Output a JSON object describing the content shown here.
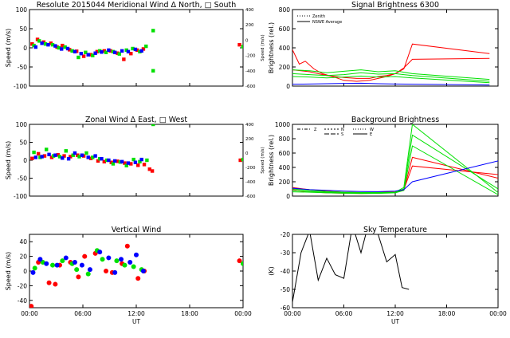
{
  "figure": {
    "x_tick_labels": [
      "00:00",
      "06:00",
      "12:00",
      "18:00",
      "00:00"
    ],
    "x_axis_label": "UT",
    "colors": {
      "red": "#ff0000",
      "green": "#00e000",
      "blue": "#0000ff",
      "axis": "#000000",
      "background": "#ffffff"
    }
  },
  "chart_data": [
    {
      "type": "scatter",
      "title": "Resolute   2015044     Meridional Wind   Δ North, □ South",
      "ylabel": "Speed (m/s)",
      "ylabel_right": "Speed (m/s)",
      "xlim": [
        0,
        24
      ],
      "ylim": [
        -100,
        100
      ],
      "yticks": [
        -100,
        -50,
        0,
        50,
        100
      ],
      "y2ticks": [
        -600,
        -400,
        -200,
        0,
        200,
        400
      ],
      "series": [
        {
          "color": "red",
          "x": [
            0.3,
            0.9,
            1.6,
            2.4,
            3.1,
            3.7,
            4.5,
            5.3,
            6.1,
            6.9,
            7.6,
            8.4,
            9.1,
            9.9,
            10.6,
            11.4,
            12.1,
            12.8,
            23.6
          ],
          "y": [
            10,
            22,
            15,
            12,
            2,
            6,
            -5,
            -9,
            -22,
            -18,
            -10,
            -8,
            -8,
            -14,
            -30,
            -15,
            -6,
            -3,
            8
          ]
        },
        {
          "color": "green",
          "x": [
            0.5,
            1.1,
            1.8,
            2.6,
            3.3,
            4.0,
            4.8,
            5.5,
            6.3,
            7.1,
            7.9,
            8.6,
            9.4,
            10.1,
            10.9,
            11.6,
            12.4,
            13.1,
            13.9,
            13.9,
            24.0
          ],
          "y": [
            6,
            18,
            10,
            8,
            0,
            2,
            -8,
            -25,
            -12,
            -20,
            -8,
            -12,
            -10,
            -16,
            -6,
            -2,
            -10,
            4,
            45,
            -60,
            3
          ]
        },
        {
          "color": "blue",
          "x": [
            0.7,
            1.4,
            2.1,
            2.9,
            3.6,
            4.3,
            5.1,
            5.8,
            6.6,
            7.4,
            8.1,
            8.9,
            9.6,
            10.4,
            11.1,
            11.9,
            12.6
          ],
          "y": [
            2,
            12,
            8,
            5,
            -3,
            -2,
            -10,
            -15,
            -18,
            -14,
            -11,
            -6,
            -12,
            -8,
            -10,
            -4,
            -8
          ]
        }
      ]
    },
    {
      "type": "line",
      "title": "Signal Brightness        6300",
      "ylabel": "Brightness (rel.)",
      "xlim": [
        0,
        24
      ],
      "ylim": [
        0,
        800
      ],
      "yticks": [
        0,
        200,
        400,
        600,
        800
      ],
      "legend": [
        "Zenith",
        "NSWE Average"
      ],
      "series": [
        {
          "color": "red",
          "x": [
            0,
            0.8,
            1.5,
            2.5,
            3.5,
            5,
            6,
            7.5,
            9,
            10,
            11,
            12,
            13,
            14,
            23
          ],
          "y": [
            380,
            230,
            260,
            180,
            130,
            90,
            60,
            50,
            60,
            80,
            100,
            130,
            180,
            440,
            340
          ]
        },
        {
          "color": "red",
          "x": [
            0,
            1,
            2,
            3,
            4,
            5,
            6,
            7.5,
            9,
            10,
            11,
            12,
            13,
            14,
            23
          ],
          "y": [
            170,
            160,
            150,
            130,
            110,
            100,
            90,
            80,
            80,
            100,
            110,
            130,
            190,
            280,
            290
          ]
        },
        {
          "color": "green",
          "x": [
            0,
            2,
            4,
            6,
            8,
            10,
            12,
            14,
            23
          ],
          "y": [
            170,
            160,
            140,
            155,
            170,
            150,
            160,
            130,
            70
          ]
        },
        {
          "color": "green",
          "x": [
            0,
            2,
            4,
            6,
            8,
            10,
            12,
            14,
            23
          ],
          "y": [
            130,
            120,
            110,
            120,
            140,
            125,
            130,
            110,
            50
          ]
        },
        {
          "color": "green",
          "x": [
            0,
            2,
            4,
            6,
            8,
            10,
            12,
            14,
            23
          ],
          "y": [
            100,
            95,
            85,
            95,
            105,
            95,
            100,
            85,
            35
          ]
        },
        {
          "color": "blue",
          "x": [
            0,
            2,
            4,
            6,
            8,
            10,
            12,
            14,
            23
          ],
          "y": [
            20,
            22,
            25,
            28,
            30,
            25,
            22,
            20,
            12
          ]
        }
      ]
    },
    {
      "type": "scatter",
      "title": "Zonal Wind        Δ East, □ West",
      "ylabel": "Speed (m/s)",
      "ylabel_right": "Speed (m/s)",
      "xlim": [
        0,
        24
      ],
      "ylim": [
        -100,
        100
      ],
      "yticks": [
        -100,
        -50,
        0,
        50,
        100
      ],
      "y2ticks": [
        -600,
        -400,
        -200,
        0,
        200,
        400
      ],
      "series": [
        {
          "color": "red",
          "x": [
            0.3,
            1.0,
            1.7,
            2.5,
            3.2,
            3.9,
            4.6,
            5.4,
            6.1,
            6.9,
            7.7,
            8.4,
            9.2,
            9.9,
            10.7,
            11.4,
            12.2,
            12.9,
            13.5,
            13.8,
            23.7
          ],
          "y": [
            5,
            18,
            12,
            8,
            15,
            12,
            10,
            14,
            12,
            5,
            -2,
            -4,
            -6,
            -3,
            -8,
            -10,
            -14,
            -12,
            -25,
            -30,
            0
          ]
        },
        {
          "color": "green",
          "x": [
            0.5,
            1.2,
            1.9,
            2.7,
            3.4,
            4.1,
            4.9,
            5.6,
            6.4,
            7.1,
            7.9,
            8.7,
            9.4,
            10.2,
            10.9,
            11.7,
            12.4,
            13.2,
            13.9,
            24.0
          ],
          "y": [
            22,
            8,
            30,
            12,
            10,
            26,
            14,
            10,
            20,
            8,
            4,
            0,
            -10,
            -5,
            -15,
            2,
            -4,
            0,
            100,
            2
          ]
        },
        {
          "color": "blue",
          "x": [
            0.7,
            1.4,
            2.2,
            2.9,
            3.7,
            4.4,
            5.1,
            5.9,
            6.6,
            7.4,
            8.1,
            8.9,
            9.6,
            10.4,
            11.1,
            11.9,
            12.6
          ],
          "y": [
            8,
            10,
            16,
            14,
            6,
            4,
            20,
            14,
            8,
            12,
            4,
            0,
            -2,
            -4,
            -8,
            -6,
            2
          ]
        }
      ]
    },
    {
      "type": "line",
      "title": "Background Brightness",
      "ylabel": "Brightness (rel.)",
      "xlim": [
        0,
        24
      ],
      "ylim": [
        0,
        1000
      ],
      "yticks": [
        0,
        200,
        400,
        600,
        800,
        1000
      ],
      "legend": [
        "Z",
        "N",
        "S",
        "W",
        "E"
      ],
      "series": [
        {
          "color": "red",
          "x": [
            0,
            1,
            2,
            4,
            6,
            8,
            10,
            12,
            13,
            14,
            24
          ],
          "y": [
            90,
            70,
            60,
            45,
            40,
            35,
            40,
            55,
            80,
            540,
            250
          ]
        },
        {
          "color": "red",
          "x": [
            0,
            2,
            4,
            6,
            8,
            10,
            12,
            13,
            14,
            24
          ],
          "y": [
            120,
            90,
            70,
            55,
            50,
            52,
            60,
            90,
            420,
            300
          ]
        },
        {
          "color": "green",
          "x": [
            0,
            2,
            4,
            6,
            8,
            10,
            12,
            13,
            14,
            24
          ],
          "y": [
            100,
            80,
            65,
            55,
            50,
            50,
            55,
            120,
            1000,
            50
          ]
        },
        {
          "color": "green",
          "x": [
            0,
            2,
            4,
            6,
            8,
            10,
            12,
            13,
            14,
            24
          ],
          "y": [
            80,
            65,
            55,
            45,
            40,
            45,
            50,
            100,
            850,
            100
          ]
        },
        {
          "color": "green",
          "x": [
            0,
            2,
            4,
            6,
            8,
            10,
            12,
            13,
            14,
            24
          ],
          "y": [
            60,
            55,
            45,
            40,
            35,
            38,
            45,
            80,
            700,
            20
          ]
        },
        {
          "color": "blue",
          "x": [
            0,
            2,
            4,
            6,
            8,
            10,
            12,
            13,
            14,
            24
          ],
          "y": [
            110,
            90,
            80,
            70,
            65,
            62,
            70,
            90,
            200,
            490
          ]
        }
      ]
    },
    {
      "type": "scatter",
      "title": "Vertical Wind",
      "ylabel": "Speed (m/s)",
      "xlim": [
        0,
        24
      ],
      "ylim": [
        -50,
        50
      ],
      "yticks": [
        -40,
        -20,
        0,
        20,
        40
      ],
      "series": [
        {
          "color": "red",
          "x": [
            0.2,
            1.0,
            2.2,
            2.9,
            3.4,
            4.6,
            5.5,
            6.2,
            7.4,
            8.6,
            9.3,
            10.4,
            11.0,
            12.2,
            12.9,
            23.6
          ],
          "y": [
            -48,
            12,
            -16,
            -18,
            8,
            12,
            -8,
            20,
            24,
            0,
            -2,
            10,
            34,
            -10,
            0,
            14
          ]
        },
        {
          "color": "green",
          "x": [
            0.6,
            1.5,
            2.6,
            3.7,
            4.8,
            5.3,
            6.6,
            7.6,
            8.2,
            9.8,
            10.7,
            11.7,
            12.6,
            24.0
          ],
          "y": [
            4,
            12,
            8,
            14,
            10,
            2,
            -4,
            28,
            16,
            14,
            8,
            6,
            2,
            10
          ]
        },
        {
          "color": "blue",
          "x": [
            0.4,
            1.2,
            1.9,
            3.1,
            4.1,
            5.1,
            5.9,
            6.8,
            7.9,
            8.9,
            9.6,
            10.3,
            11.3,
            12.0,
            12.8
          ],
          "y": [
            -2,
            16,
            10,
            8,
            18,
            12,
            8,
            2,
            26,
            18,
            -2,
            16,
            12,
            22,
            0
          ]
        }
      ]
    },
    {
      "type": "line",
      "title": "Sky Temperature",
      "ylabel": "(K)",
      "xlim": [
        0,
        24
      ],
      "ylim": [
        -60,
        -20
      ],
      "yticks": [
        -60,
        -50,
        -40,
        -30,
        -20
      ],
      "series": [
        {
          "color": "black",
          "x": [
            0,
            1,
            2,
            3,
            4,
            5,
            6,
            7,
            8,
            9,
            10,
            11,
            12,
            12.8,
            13.6
          ],
          "y": [
            -57,
            -30,
            -18,
            -45,
            -33,
            -42,
            -44,
            -15,
            -30,
            -12,
            -20,
            -35,
            -31,
            -49,
            -50
          ]
        }
      ]
    }
  ]
}
